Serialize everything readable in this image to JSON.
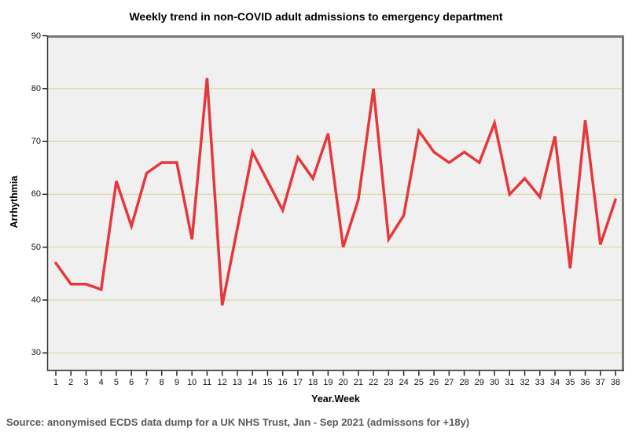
{
  "title": "Weekly trend in non-COVID adult admissions to emergency department",
  "source_note": "Source: anonymised ECDS data dump for a UK NHS Trust, Jan - Sep 2021 (admissons for +18y)",
  "chart_data": {
    "type": "line",
    "title": "Weekly trend in non-COVID adult admissions to emergency department",
    "xlabel": "Year.Week",
    "ylabel": "Arrhythmia",
    "x": [
      1,
      2,
      3,
      4,
      5,
      6,
      7,
      8,
      9,
      10,
      11,
      12,
      13,
      14,
      15,
      16,
      17,
      18,
      19,
      20,
      21,
      22,
      23,
      24,
      25,
      26,
      27,
      28,
      29,
      30,
      31,
      32,
      33,
      34,
      35,
      36,
      37,
      38
    ],
    "series": [
      {
        "name": "Arrhythmia",
        "values": [
          47,
          43,
          43,
          42,
          62.5,
          54,
          64,
          66,
          66,
          51.5,
          82,
          39,
          53.5,
          68,
          62.5,
          57,
          67,
          63,
          71.5,
          50,
          59,
          80,
          51.5,
          56,
          72,
          68,
          66,
          68,
          66,
          73.5,
          60,
          63,
          59.5,
          71,
          46,
          74,
          50.5,
          59
        ]
      }
    ],
    "yticks": [
      30,
      40,
      50,
      60,
      70,
      80,
      90
    ],
    "ylim": [
      26.5,
      90
    ],
    "grid": "horizontal",
    "legend": "none",
    "colors": {
      "line": "#E5383D",
      "gridline": "#DBD7A4",
      "plot_background": "#F0F0F0",
      "frame_light": "#787878",
      "frame_dark": "#3A3A3A",
      "tick": "#222222",
      "source_text": "#595959"
    }
  }
}
